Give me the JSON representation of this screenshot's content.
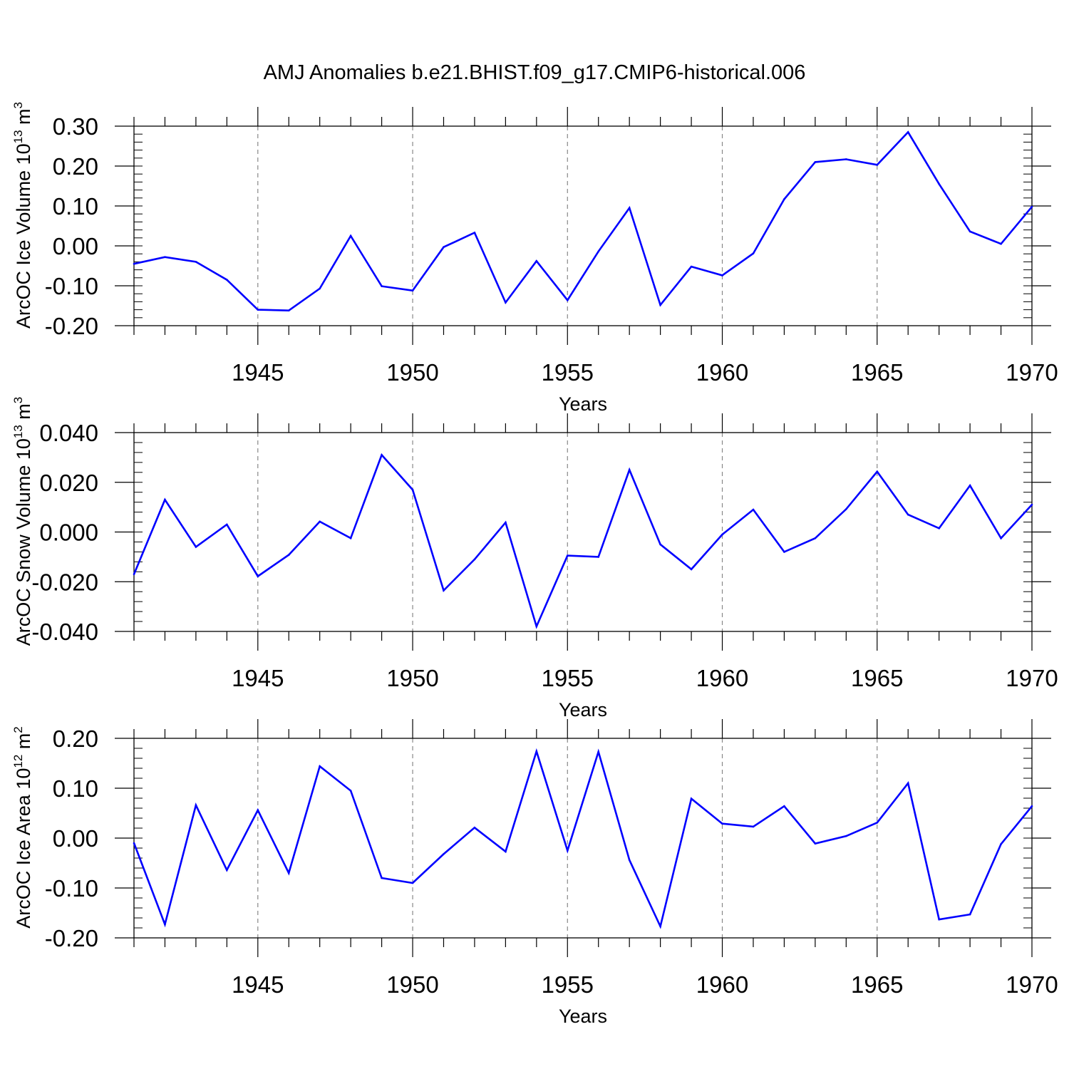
{
  "title": "AMJ Anomalies b.e21.BHIST.f09_g17.CMIP6-historical.006",
  "line_color": "#0000ff",
  "chart_data": [
    {
      "type": "line",
      "ylabel": {
        "prefix": "ArcOC Ice Volume 10",
        "exp1": "13",
        "mid": " m",
        "exp2": "3"
      },
      "xlabel": "Years",
      "xlim": [
        1941,
        1970
      ],
      "ylim": [
        -0.2,
        0.3
      ],
      "y_ticks": [
        -0.2,
        -0.1,
        0.0,
        0.1,
        0.2,
        0.3
      ],
      "y_tick_labels": [
        "-0.20",
        "-0.10",
        "0.00",
        "0.10",
        "0.20",
        "0.30"
      ],
      "y_minor_step": 0.02,
      "x_ticks": [
        1945,
        1950,
        1955,
        1960,
        1965,
        1970
      ],
      "x_tick_labels": [
        "1945",
        "1950",
        "1955",
        "1960",
        "1965",
        "1970"
      ],
      "x": [
        1941,
        1942,
        1943,
        1944,
        1945,
        1946,
        1947,
        1948,
        1949,
        1950,
        1951,
        1952,
        1953,
        1954,
        1955,
        1956,
        1957,
        1958,
        1959,
        1960,
        1961,
        1962,
        1963,
        1964,
        1965,
        1966,
        1967,
        1968,
        1969,
        1970
      ],
      "values": [
        -0.045,
        -0.028,
        -0.04,
        -0.085,
        -0.16,
        -0.162,
        -0.107,
        0.025,
        -0.101,
        -0.112,
        -0.003,
        0.033,
        -0.142,
        -0.038,
        -0.136,
        -0.014,
        0.095,
        -0.148,
        -0.052,
        -0.074,
        -0.019,
        0.117,
        0.21,
        0.217,
        0.203,
        0.285,
        0.155,
        0.036,
        0.005,
        0.098
      ]
    },
    {
      "type": "line",
      "ylabel": {
        "prefix": "ArcOC Snow Volume 10",
        "exp1": "13",
        "mid": " m",
        "exp2": "3"
      },
      "xlabel": "Years",
      "xlim": [
        1941,
        1970
      ],
      "ylim": [
        -0.04,
        0.04
      ],
      "y_ticks": [
        -0.04,
        -0.02,
        0.0,
        0.02,
        0.04
      ],
      "y_tick_labels": [
        "-0.040",
        "-0.020",
        "0.000",
        "0.020",
        "0.040"
      ],
      "y_minor_step": 0.004,
      "x_ticks": [
        1945,
        1950,
        1955,
        1960,
        1965,
        1970
      ],
      "x_tick_labels": [
        "1945",
        "1950",
        "1955",
        "1960",
        "1965",
        "1970"
      ],
      "x": [
        1941,
        1942,
        1943,
        1944,
        1945,
        1946,
        1947,
        1948,
        1949,
        1950,
        1951,
        1952,
        1953,
        1954,
        1955,
        1956,
        1957,
        1958,
        1959,
        1960,
        1961,
        1962,
        1963,
        1964,
        1965,
        1966,
        1967,
        1968,
        1969,
        1970
      ],
      "values": [
        -0.017,
        0.013,
        -0.006,
        0.003,
        -0.0178,
        -0.0092,
        0.0042,
        -0.0025,
        0.031,
        0.017,
        -0.0235,
        -0.011,
        0.0038,
        -0.038,
        -0.0095,
        -0.01,
        0.025,
        -0.005,
        -0.015,
        -0.001,
        0.009,
        -0.008,
        -0.0025,
        0.0092,
        0.0243,
        0.007,
        0.0015,
        0.0187,
        -0.0025,
        0.011
      ]
    },
    {
      "type": "line",
      "ylabel": {
        "prefix": "ArcOC Ice Area 10",
        "exp1": "12",
        "mid": " m",
        "exp2": "2"
      },
      "xlabel": "Years",
      "xlim": [
        1941,
        1970
      ],
      "ylim": [
        -0.2,
        0.2
      ],
      "y_ticks": [
        -0.2,
        -0.1,
        0.0,
        0.1,
        0.2
      ],
      "y_tick_labels": [
        "-0.20",
        "-0.10",
        "0.00",
        "0.10",
        "0.20"
      ],
      "y_minor_step": 0.02,
      "x_ticks": [
        1945,
        1950,
        1955,
        1960,
        1965,
        1970
      ],
      "x_tick_labels": [
        "1945",
        "1950",
        "1955",
        "1960",
        "1965",
        "1970"
      ],
      "x": [
        1941,
        1942,
        1943,
        1944,
        1945,
        1946,
        1947,
        1948,
        1949,
        1950,
        1951,
        1952,
        1953,
        1954,
        1955,
        1956,
        1957,
        1958,
        1959,
        1960,
        1961,
        1962,
        1963,
        1964,
        1965,
        1966,
        1967,
        1968,
        1969,
        1970
      ],
      "values": [
        -0.01,
        -0.173,
        0.066,
        -0.064,
        0.056,
        -0.07,
        0.144,
        0.095,
        -0.08,
        -0.09,
        -0.032,
        0.021,
        -0.027,
        0.174,
        -0.025,
        0.173,
        -0.044,
        -0.177,
        0.079,
        0.029,
        0.023,
        0.064,
        -0.011,
        0.004,
        0.031,
        0.11,
        -0.163,
        -0.153,
        -0.012,
        0.064
      ]
    }
  ]
}
